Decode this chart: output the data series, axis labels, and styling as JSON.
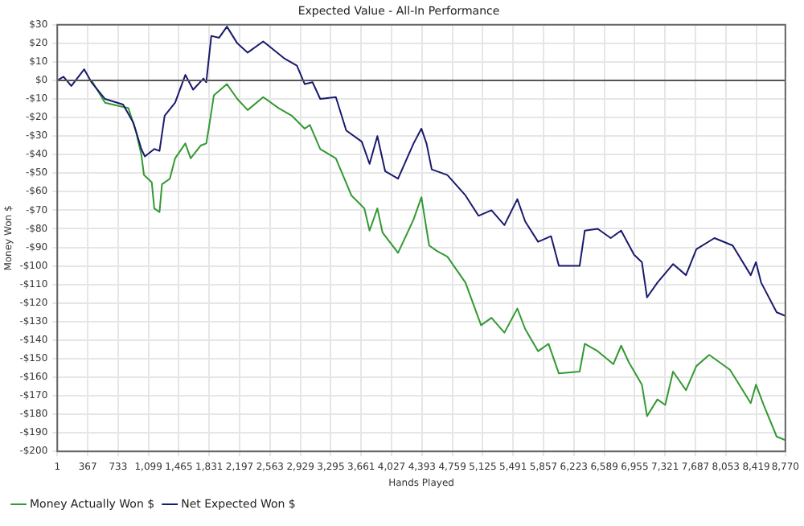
{
  "chart_data": {
    "type": "line",
    "title": "Expected Value - All-In Performance",
    "xlabel": "Hands Played",
    "ylabel": "Money Won $",
    "xlim": [
      1,
      8770
    ],
    "xticks": [
      1,
      {
        "value": 367,
        "label": "367"
      },
      {
        "value": 733,
        "label": "733"
      },
      {
        "value": 1099,
        "label": "1,099"
      },
      {
        "value": 1465,
        "label": "1,465"
      },
      {
        "value": 1831,
        "label": "1,831"
      },
      {
        "value": 2197,
        "label": "2,197"
      },
      {
        "value": 2563,
        "label": "2,563"
      },
      {
        "value": 2929,
        "label": "2,929"
      },
      {
        "value": 3295,
        "label": "3,295"
      },
      {
        "value": 3661,
        "label": "3,661"
      },
      {
        "value": 4027,
        "label": "4,027"
      },
      {
        "value": 4393,
        "label": "4,393"
      },
      {
        "value": 4759,
        "label": "4,759"
      },
      {
        "value": 5125,
        "label": "5,125"
      },
      {
        "value": 5491,
        "label": "5,491"
      },
      {
        "value": 5857,
        "label": "5,857"
      },
      {
        "value": 6223,
        "label": "6,223"
      },
      {
        "value": 6589,
        "label": "6,589"
      },
      {
        "value": 6955,
        "label": "6,955"
      },
      {
        "value": 7321,
        "label": "7,321"
      },
      {
        "value": 7687,
        "label": "7,687"
      },
      {
        "value": 8053,
        "label": "8,053"
      },
      {
        "value": 8419,
        "label": "8,419"
      },
      {
        "value": 8770,
        "label": "8,770"
      }
    ],
    "ylim": [
      -200,
      30
    ],
    "yticks": [
      {
        "value": 30,
        "label": "$30"
      },
      {
        "value": 20,
        "label": "$20"
      },
      {
        "value": 10,
        "label": "$10"
      },
      {
        "value": 0,
        "label": "$0"
      },
      {
        "value": -10,
        "label": "-$10"
      },
      {
        "value": -20,
        "label": "-$20"
      },
      {
        "value": -30,
        "label": "-$30"
      },
      {
        "value": -40,
        "label": "-$40"
      },
      {
        "value": -50,
        "label": "-$50"
      },
      {
        "value": -60,
        "label": "-$60"
      },
      {
        "value": -70,
        "label": "-$70"
      },
      {
        "value": -80,
        "label": "-$80"
      },
      {
        "value": -90,
        "label": "-$90"
      },
      {
        "value": -100,
        "label": "-$100"
      },
      {
        "value": -110,
        "label": "-$110"
      },
      {
        "value": -120,
        "label": "-$120"
      },
      {
        "value": -130,
        "label": "-$130"
      },
      {
        "value": -140,
        "label": "-$140"
      },
      {
        "value": -150,
        "label": "-$150"
      },
      {
        "value": -160,
        "label": "-$160"
      },
      {
        "value": -170,
        "label": "-$170"
      },
      {
        "value": -180,
        "label": "-$180"
      },
      {
        "value": -190,
        "label": "-$190"
      },
      {
        "value": -200,
        "label": "-$200"
      }
    ],
    "grid": true,
    "legend": "bottom left",
    "marker": "none",
    "line_style": "solid",
    "ref_lines": [
      {
        "axis": "y",
        "value": 0,
        "color": "#555555"
      }
    ],
    "series": [
      {
        "name": "Money Actually Won $",
        "color": "#339933",
        "x": [
          413,
          576,
          858,
          951,
          1013,
          1045,
          1139,
          1169,
          1232,
          1262,
          1356,
          1420,
          1543,
          1607,
          1731,
          1795,
          1825,
          1887,
          2044,
          2169,
          2294,
          2481,
          2669,
          2825,
          2981,
          3043,
          3168,
          3356,
          3543,
          3699,
          3762,
          3856,
          3918,
          4105,
          4292,
          4386,
          4480,
          4574,
          4699,
          4917,
          5105,
          5230,
          5386,
          5542,
          5636,
          5792,
          5917,
          6042,
          6292,
          6354,
          6510,
          6698,
          6792,
          6885,
          7042,
          7104,
          7229,
          7323,
          7417,
          7573,
          7698,
          7853,
          8103,
          8353,
          8416,
          8509,
          8665,
          8770
        ],
        "values": [
          0,
          -12,
          -15,
          -28,
          -40,
          -51,
          -55,
          -69,
          -71,
          -56,
          -53,
          -42,
          -34,
          -42,
          -35,
          -34,
          -26,
          -8,
          -2,
          -10,
          -16,
          -9,
          -15,
          -19,
          -26,
          -24,
          -37,
          -42,
          -62,
          -69,
          -81,
          -69,
          -82,
          -93,
          -75,
          -63,
          -89,
          -92,
          -95,
          -109,
          -132,
          -128,
          -136,
          -123,
          -134,
          -146,
          -142,
          -158,
          -157,
          -142,
          -146,
          -153,
          -143,
          -152,
          -164,
          -181,
          -172,
          -175,
          -157,
          -167,
          -154,
          -148,
          -156,
          -174,
          -164,
          -175,
          -192,
          -194
        ]
      },
      {
        "name": "Net Expected Won $",
        "color": "#1a1a6e",
        "x": [
          1,
          76,
          170,
          325,
          413,
          576,
          794,
          919,
          1013,
          1056,
          1169,
          1232,
          1294,
          1420,
          1543,
          1637,
          1762,
          1795,
          1856,
          1950,
          2044,
          2169,
          2294,
          2481,
          2731,
          2887,
          2981,
          3075,
          3168,
          3356,
          3481,
          3668,
          3762,
          3856,
          3950,
          4105,
          4292,
          4386,
          4448,
          4511,
          4699,
          4917,
          5074,
          5230,
          5386,
          5542,
          5636,
          5792,
          5948,
          6042,
          6292,
          6354,
          6510,
          6667,
          6792,
          6948,
          7042,
          7104,
          7229,
          7417,
          7573,
          7698,
          7916,
          8135,
          8353,
          8416,
          8478,
          8665,
          8770
        ],
        "values": [
          0,
          2,
          -3,
          6,
          -1,
          -10,
          -13,
          -23,
          -37,
          -41,
          -37,
          -38,
          -19,
          -12,
          3,
          -5,
          1,
          -1,
          24,
          23,
          29,
          20,
          15,
          21,
          12,
          8,
          -2,
          -1,
          -10,
          -9,
          -27,
          -33,
          -45,
          -30,
          -49,
          -53,
          -34,
          -26,
          -34,
          -48,
          -51,
          -62,
          -73,
          -70,
          -78,
          -64,
          -76,
          -87,
          -84,
          -100,
          -100,
          -81,
          -80,
          -85,
          -81,
          -94,
          -98,
          -117,
          -109,
          -99,
          -105,
          -91,
          -85,
          -89,
          -105,
          -98,
          -109,
          -125,
          -127
        ]
      }
    ]
  }
}
